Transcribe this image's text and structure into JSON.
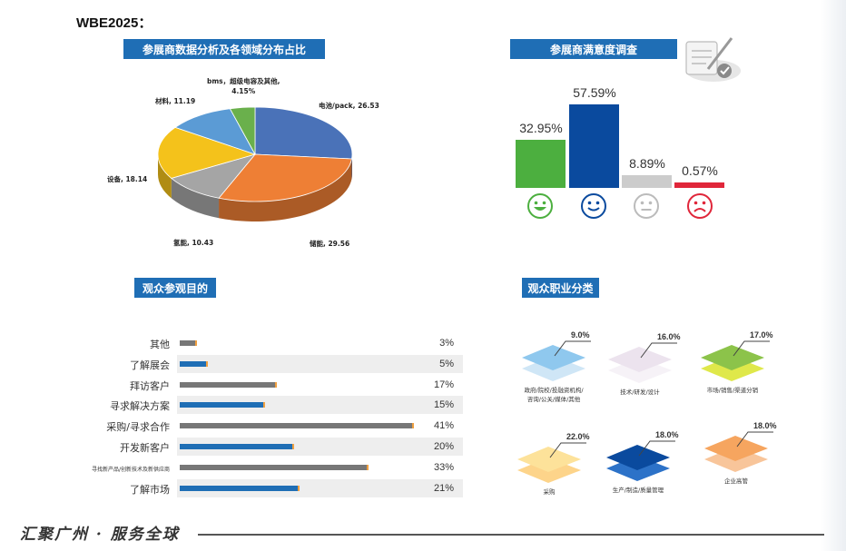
{
  "page_title": "WBE2025：",
  "exhibitor_section": {
    "header": "参展商数据分析及各领域分布占比",
    "chart_data": {
      "type": "pie",
      "slices": [
        {
          "label": "电池/pack, 26.53",
          "value": 26.53,
          "color": "#4a72b8"
        },
        {
          "label": "储能, 29.56",
          "value": 29.56,
          "color": "#ee7f35"
        },
        {
          "label": "氢能, 10.43",
          "value": 10.43,
          "color": "#a5a5a5"
        },
        {
          "label": "设备, 18.14",
          "value": 18.14,
          "color": "#f4c21b"
        },
        {
          "label": "材料, 11.19",
          "value": 11.19,
          "color": "#5b9bd5"
        },
        {
          "label": "bms，超级电容及其他,\n4.15%",
          "value": 4.15,
          "color": "#6ab04c"
        }
      ]
    }
  },
  "satisfaction_section": {
    "header": "参展商满意度调查",
    "chart_data": {
      "type": "bar",
      "categories": [
        "very-satisfied",
        "satisfied",
        "neutral",
        "dissatisfied"
      ],
      "values": [
        32.95,
        57.59,
        8.89,
        0.57
      ],
      "value_labels": [
        "32.95%",
        "57.59%",
        "8.89%",
        "0.57%"
      ],
      "colors": [
        "#4caf3f",
        "#0a4a9e",
        "#cccccc",
        "#e0263a"
      ]
    }
  },
  "purpose_section": {
    "header": "观众参观目的",
    "chart_data": {
      "type": "bar",
      "orientation": "horizontal",
      "categories": [
        "其他",
        "了解展会",
        "拜访客户",
        "寻求解决方案",
        "采购/寻求合作",
        "开发新客户",
        "寻找新产品/创新技术及新供应商",
        "了解市场"
      ],
      "values": [
        3,
        5,
        17,
        15,
        41,
        20,
        33,
        21
      ],
      "value_labels": [
        "3%",
        "5%",
        "17%",
        "15%",
        "41%",
        "20%",
        "33%",
        "21%"
      ],
      "colors": [
        "#777777",
        "#1f6eb5",
        "#777777",
        "#1f6eb5",
        "#777777",
        "#1f6eb5",
        "#777777",
        "#1f6eb5"
      ]
    }
  },
  "occupation_section": {
    "header": "观众职业分类",
    "items": [
      {
        "pct": "9.0%",
        "label": "政府/院校/投融资机构/\n咨询/公关/媒体/其他",
        "top": "#8fc8ee",
        "bottom": "#cfe6f6"
      },
      {
        "pct": "16.0%",
        "label": "技术/研发/设计",
        "top": "#ece3ee",
        "bottom": "#f6f2f7"
      },
      {
        "pct": "17.0%",
        "label": "市场/销售/渠道分销",
        "top": "#8cc34a",
        "bottom": "#dfe84a"
      },
      {
        "pct": "22.0%",
        "label": "采购",
        "top": "#fde29a",
        "bottom": "#fdd48a"
      },
      {
        "pct": "18.0%",
        "label": "生产/制造/质量管理",
        "top": "#0a4a9e",
        "bottom": "#2c72c8"
      },
      {
        "pct": "18.0%",
        "label": "企业高管",
        "top": "#f6a55f",
        "bottom": "#f8c59a"
      }
    ]
  },
  "footer": {
    "slogan": "汇聚广州 · 服务全球"
  }
}
